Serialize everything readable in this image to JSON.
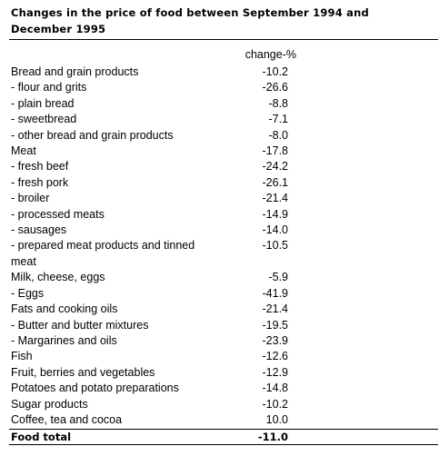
{
  "table": {
    "title": "Changes in the price of food between September 1994 and December 1995",
    "column_header": "change-%",
    "rows": [
      {
        "label": "Bread and grain products",
        "value": "-10.2"
      },
      {
        "label": "- flour and grits",
        "value": "-26.6"
      },
      {
        "label": "- plain bread",
        "value": "-8.8"
      },
      {
        "label": "- sweetbread",
        "value": "-7.1"
      },
      {
        "label": "- other bread and grain products",
        "value": "-8.0"
      },
      {
        "label": "Meat",
        "value": "-17.8"
      },
      {
        "label": "- fresh beef",
        "value": "-24.2"
      },
      {
        "label": "- fresh pork",
        "value": "-26.1"
      },
      {
        "label": "- broiler",
        "value": "-21.4"
      },
      {
        "label": "- processed meats",
        "value": "-14.9"
      },
      {
        "label": "- sausages",
        "value": "-14.0"
      },
      {
        "label": "- prepared meat products and tinned meat",
        "value": "-10.5"
      },
      {
        "label": "Milk, cheese, eggs",
        "value": "-5.9"
      },
      {
        "label": "- Eggs",
        "value": "-41.9"
      },
      {
        "label": "Fats and cooking oils",
        "value": "-21.4"
      },
      {
        "label": "- Butter and butter mixtures",
        "value": "-19.5"
      },
      {
        "label": "- Margarines and oils",
        "value": "-23.9"
      },
      {
        "label": "Fish",
        "value": "-12.6"
      },
      {
        "label": "Fruit, berries and vegetables",
        "value": "-12.9"
      },
      {
        "label": "Potatoes and potato preparations",
        "value": "-14.8"
      },
      {
        "label": "Sugar products",
        "value": "-10.2"
      },
      {
        "label": "Coffee, tea and cocoa",
        "value": "10.0"
      }
    ],
    "total": {
      "label": "Food total",
      "value": "-11.0"
    }
  }
}
